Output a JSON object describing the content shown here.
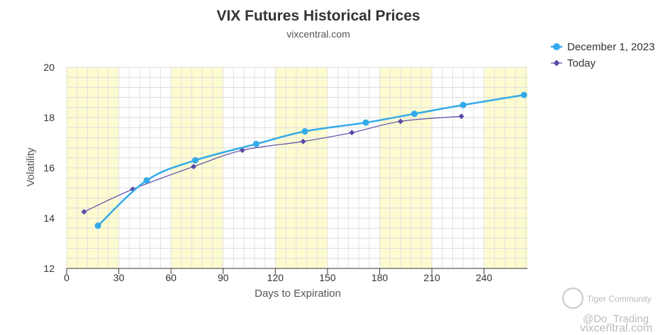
{
  "chart_data": {
    "type": "line",
    "title": "VIX Futures Historical Prices",
    "subtitle": "vixcentral.com",
    "xlabel": "Days to Expiration",
    "ylabel": "Volatility",
    "xlim": [
      0,
      265
    ],
    "ylim": [
      12,
      20
    ],
    "x_ticks": [
      0,
      30,
      60,
      90,
      120,
      150,
      180,
      210,
      240
    ],
    "y_ticks": [
      12,
      14,
      16,
      18,
      20
    ],
    "legend_position": "top-right",
    "grid": true,
    "series": [
      {
        "name": "December 1, 2023",
        "color": "#33aae8",
        "marker": "circle",
        "x": [
          18,
          46,
          74,
          109,
          137,
          172,
          200,
          228,
          263
        ],
        "y": [
          13.7,
          15.5,
          16.3,
          16.95,
          17.45,
          17.8,
          18.15,
          18.5,
          18.9
        ]
      },
      {
        "name": "Today",
        "color": "#5a4aa8",
        "marker": "diamond",
        "x": [
          10,
          38,
          73,
          101,
          136,
          164,
          192,
          227
        ],
        "y": [
          14.25,
          15.15,
          16.05,
          16.7,
          17.05,
          17.4,
          17.85,
          18.05
        ]
      }
    ]
  },
  "watermark": {
    "community": "Tiger Community",
    "handle": "@Do_Trading",
    "site": "vixcentral.com"
  }
}
